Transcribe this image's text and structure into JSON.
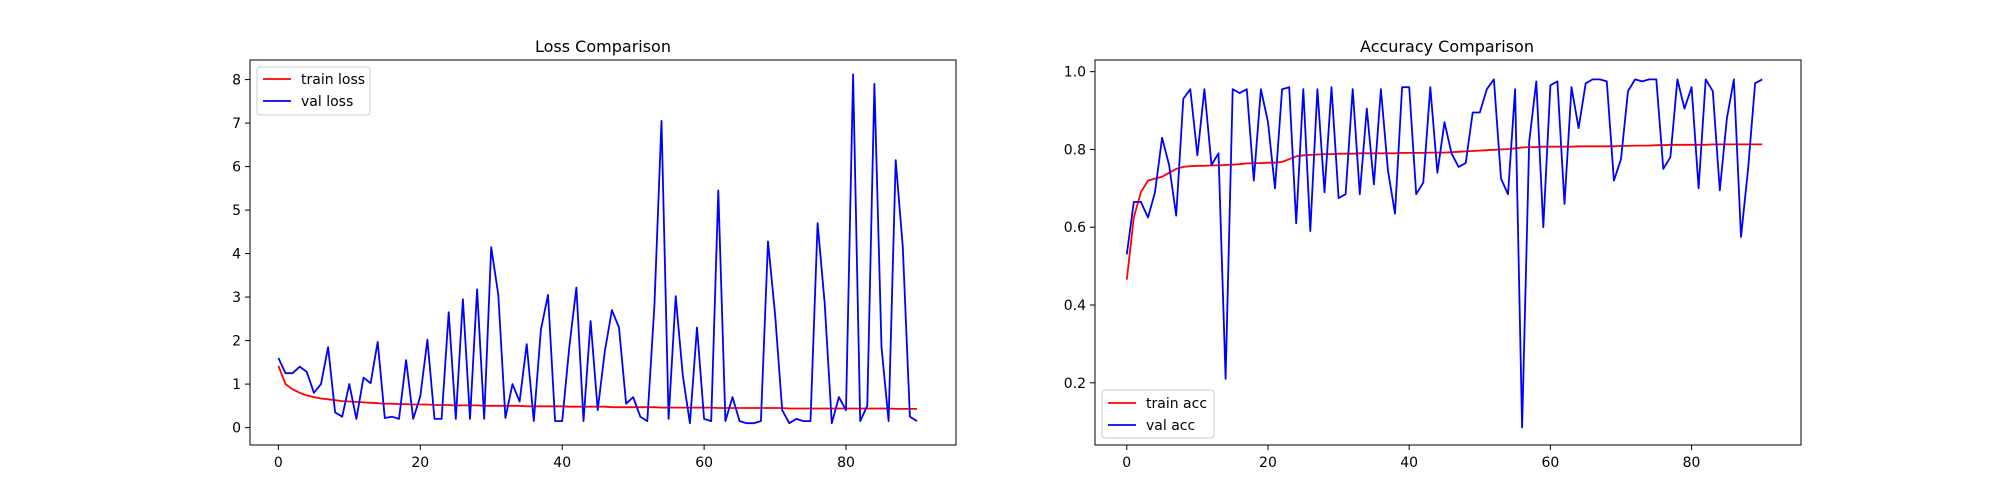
{
  "chart_data": [
    {
      "type": "line",
      "title": "Loss Comparison",
      "xlabel": "",
      "ylabel": "",
      "xlim": [
        -4,
        95.5
      ],
      "ylim": [
        -0.4,
        8.45
      ],
      "xticks": [
        0,
        20,
        40,
        60,
        80
      ],
      "yticks": [
        0,
        1,
        2,
        3,
        4,
        5,
        6,
        7,
        8
      ],
      "grid": false,
      "legend": "top-left",
      "series": [
        {
          "name": "train loss",
          "color": "#ff0000",
          "y": [
            1.42,
            1.0,
            0.88,
            0.8,
            0.74,
            0.7,
            0.67,
            0.65,
            0.63,
            0.61,
            0.6,
            0.59,
            0.58,
            0.57,
            0.56,
            0.55,
            0.55,
            0.54,
            0.54,
            0.53,
            0.53,
            0.53,
            0.52,
            0.52,
            0.52,
            0.51,
            0.51,
            0.51,
            0.51,
            0.5,
            0.5,
            0.5,
            0.5,
            0.5,
            0.5,
            0.49,
            0.49,
            0.49,
            0.49,
            0.49,
            0.49,
            0.48,
            0.48,
            0.48,
            0.48,
            0.48,
            0.48,
            0.47,
            0.47,
            0.47,
            0.47,
            0.47,
            0.47,
            0.47,
            0.46,
            0.46,
            0.46,
            0.46,
            0.46,
            0.46,
            0.46,
            0.46,
            0.45,
            0.45,
            0.45,
            0.45,
            0.45,
            0.45,
            0.45,
            0.45,
            0.45,
            0.45,
            0.44,
            0.44,
            0.44,
            0.44,
            0.44,
            0.44,
            0.44,
            0.44,
            0.44,
            0.44,
            0.44,
            0.44,
            0.44,
            0.44,
            0.44,
            0.43,
            0.43,
            0.43,
            0.43
          ]
        },
        {
          "name": "val loss",
          "color": "#0000ff",
          "y": [
            1.6,
            1.25,
            1.25,
            1.4,
            1.28,
            0.8,
            1.0,
            1.85,
            0.35,
            0.25,
            1.0,
            0.2,
            1.15,
            1.02,
            1.97,
            0.22,
            0.25,
            0.2,
            1.55,
            0.2,
            0.72,
            2.02,
            0.2,
            0.2,
            2.65,
            0.2,
            2.95,
            0.2,
            3.18,
            0.2,
            4.15,
            3.05,
            0.22,
            1.0,
            0.6,
            1.92,
            0.15,
            2.25,
            3.05,
            0.15,
            0.15,
            1.85,
            3.22,
            0.15,
            2.45,
            0.4,
            1.75,
            2.7,
            2.3,
            0.55,
            0.7,
            0.25,
            0.15,
            2.8,
            7.05,
            0.2,
            3.02,
            1.2,
            0.1,
            2.3,
            0.2,
            0.15,
            5.45,
            0.15,
            0.7,
            0.15,
            0.1,
            0.1,
            0.15,
            4.28,
            2.6,
            0.4,
            0.1,
            0.2,
            0.15,
            0.15,
            4.7,
            2.85,
            0.1,
            0.7,
            0.4,
            8.12,
            0.15,
            0.5,
            7.9,
            1.85,
            0.15,
            6.15,
            4.15,
            0.25,
            0.15
          ]
        }
      ]
    },
    {
      "type": "line",
      "title": "Accuracy Comparison",
      "xlabel": "",
      "ylabel": "",
      "xlim": [
        -4.5,
        95.5
      ],
      "ylim": [
        0.04,
        1.03
      ],
      "xticks": [
        0,
        20,
        40,
        60,
        80
      ],
      "yticks": [
        0.2,
        0.4,
        0.6,
        0.8,
        1.0
      ],
      "grid": false,
      "legend": "bottom-left",
      "series": [
        {
          "name": "train acc",
          "color": "#ff0000",
          "y": [
            0.465,
            0.625,
            0.69,
            0.72,
            0.725,
            0.73,
            0.74,
            0.75,
            0.755,
            0.757,
            0.758,
            0.758,
            0.759,
            0.759,
            0.76,
            0.761,
            0.762,
            0.764,
            0.765,
            0.765,
            0.766,
            0.766,
            0.768,
            0.775,
            0.782,
            0.785,
            0.786,
            0.787,
            0.788,
            0.788,
            0.789,
            0.789,
            0.789,
            0.79,
            0.79,
            0.79,
            0.79,
            0.79,
            0.79,
            0.791,
            0.791,
            0.791,
            0.791,
            0.792,
            0.792,
            0.792,
            0.793,
            0.794,
            0.795,
            0.796,
            0.797,
            0.798,
            0.799,
            0.8,
            0.801,
            0.803,
            0.805,
            0.806,
            0.806,
            0.807,
            0.807,
            0.807,
            0.807,
            0.807,
            0.808,
            0.808,
            0.808,
            0.808,
            0.808,
            0.808,
            0.809,
            0.809,
            0.81,
            0.81,
            0.81,
            0.811,
            0.811,
            0.812,
            0.812,
            0.812,
            0.812,
            0.812,
            0.812,
            0.813,
            0.813,
            0.813,
            0.813,
            0.813,
            0.813,
            0.813,
            0.813
          ]
        },
        {
          "name": "val acc",
          "color": "#0000ff",
          "y": [
            0.53,
            0.665,
            0.665,
            0.625,
            0.69,
            0.83,
            0.76,
            0.63,
            0.93,
            0.955,
            0.785,
            0.955,
            0.76,
            0.79,
            0.21,
            0.955,
            0.945,
            0.955,
            0.72,
            0.955,
            0.87,
            0.7,
            0.955,
            0.96,
            0.61,
            0.955,
            0.59,
            0.955,
            0.69,
            0.96,
            0.675,
            0.685,
            0.955,
            0.685,
            0.905,
            0.71,
            0.955,
            0.745,
            0.635,
            0.96,
            0.96,
            0.685,
            0.715,
            0.96,
            0.74,
            0.87,
            0.79,
            0.755,
            0.765,
            0.895,
            0.895,
            0.955,
            0.98,
            0.725,
            0.685,
            0.955,
            0.085,
            0.82,
            0.975,
            0.6,
            0.965,
            0.975,
            0.66,
            0.96,
            0.855,
            0.97,
            0.98,
            0.98,
            0.975,
            0.72,
            0.775,
            0.95,
            0.98,
            0.975,
            0.98,
            0.98,
            0.75,
            0.78,
            0.98,
            0.905,
            0.96,
            0.7,
            0.98,
            0.95,
            0.695,
            0.88,
            0.98,
            0.575,
            0.75,
            0.97,
            0.98
          ]
        }
      ]
    }
  ]
}
